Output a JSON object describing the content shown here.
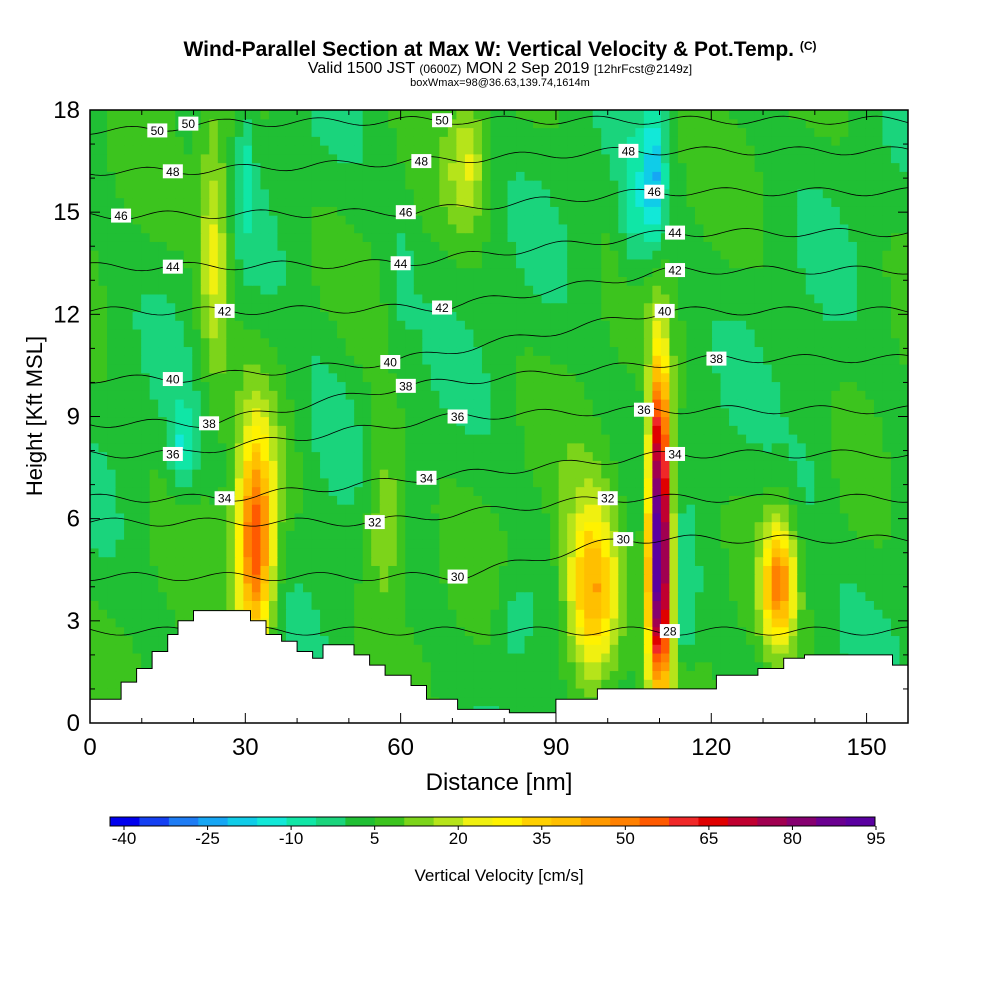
{
  "chart_data": {
    "type": "heatmap",
    "title": "Wind-Parallel Section at Max W: Vertical Velocity & Pot.Temp.",
    "title_unit": "(C)",
    "subtitle": {
      "prefix": "Valid 1500 JST",
      "utc": "(0600Z)",
      "date": "MON 2 Sep 2019",
      "forecast": "[12hrFcst@2149z]"
    },
    "box_info": "boxWmax=98@36.63,139.74,1614m",
    "xlabel": "Distance [nm]",
    "ylabel": "Height [Kft MSL]",
    "xlim": [
      0,
      158
    ],
    "ylim": [
      0,
      18
    ],
    "x_ticks": [
      "0",
      "30",
      "60",
      "90",
      "120",
      "150"
    ],
    "x_tick_values": [
      0,
      30,
      60,
      90,
      120,
      150
    ],
    "y_ticks": [
      "0",
      "3",
      "6",
      "9",
      "12",
      "15",
      "18"
    ],
    "y_tick_values": [
      0,
      3,
      6,
      9,
      12,
      15,
      18
    ],
    "colorbar": {
      "label": "Vertical Velocity [cm/s]",
      "tick_labels": [
        "-40",
        "-25",
        "-10",
        "5",
        "20",
        "35",
        "50",
        "65",
        "80",
        "95"
      ],
      "min": -40,
      "max": 95,
      "colors": [
        "#0000ee",
        "#1440f2",
        "#1e7cf4",
        "#16a6f4",
        "#10cce8",
        "#12e8d8",
        "#10e6a6",
        "#1ad47c",
        "#20bf34",
        "#3cc41e",
        "#7cd41a",
        "#b6e41a",
        "#f0f010",
        "#fff200",
        "#ffd000",
        "#ffbf00",
        "#ff9900",
        "#ff8000",
        "#ff5a00",
        "#f02828",
        "#e00000",
        "#c00030",
        "#a00050",
        "#860070",
        "#6a0090",
        "#5a00a0"
      ]
    },
    "terrain_kft": [
      [
        0,
        0.7
      ],
      [
        6,
        0.7
      ],
      [
        6,
        1.2
      ],
      [
        9,
        1.2
      ],
      [
        9,
        1.6
      ],
      [
        12,
        1.6
      ],
      [
        12,
        2.1
      ],
      [
        15,
        2.1
      ],
      [
        15,
        2.6
      ],
      [
        17,
        2.6
      ],
      [
        17,
        3
      ],
      [
        20,
        3
      ],
      [
        20,
        3.3
      ],
      [
        31,
        3.3
      ],
      [
        31,
        3
      ],
      [
        34,
        3
      ],
      [
        34,
        2.6
      ],
      [
        37,
        2.6
      ],
      [
        37,
        2.4
      ],
      [
        40,
        2.4
      ],
      [
        40,
        2.1
      ],
      [
        43,
        2.1
      ],
      [
        43,
        1.9
      ],
      [
        45,
        1.9
      ],
      [
        45,
        2.3
      ],
      [
        51,
        2.3
      ],
      [
        51,
        2
      ],
      [
        54,
        2
      ],
      [
        54,
        1.7
      ],
      [
        57,
        1.7
      ],
      [
        57,
        1.4
      ],
      [
        62,
        1.4
      ],
      [
        62,
        1.1
      ],
      [
        65,
        1.1
      ],
      [
        65,
        0.7
      ],
      [
        71,
        0.7
      ],
      [
        71,
        0.4
      ],
      [
        81,
        0.4
      ],
      [
        81,
        0.3
      ],
      [
        90,
        0.3
      ],
      [
        90,
        0.7
      ],
      [
        98,
        0.7
      ],
      [
        98,
        1
      ],
      [
        121,
        1
      ],
      [
        121,
        1.4
      ],
      [
        129,
        1.4
      ],
      [
        129,
        1.6
      ],
      [
        134,
        1.6
      ],
      [
        134,
        1.9
      ],
      [
        138,
        1.9
      ],
      [
        138,
        2
      ],
      [
        155,
        2
      ],
      [
        155,
        1.7
      ],
      [
        158,
        1.7
      ]
    ],
    "theta_contour_labels": [
      {
        "text": "50",
        "x": 13,
        "y": 17.4
      },
      {
        "text": "50",
        "x": 19,
        "y": 17.6
      },
      {
        "text": "50",
        "x": 68,
        "y": 17.7
      },
      {
        "text": "48",
        "x": 16,
        "y": 16.2
      },
      {
        "text": "48",
        "x": 64,
        "y": 16.5
      },
      {
        "text": "48",
        "x": 104,
        "y": 16.8
      },
      {
        "text": "46",
        "x": 6,
        "y": 14.9
      },
      {
        "text": "46",
        "x": 61,
        "y": 15.0
      },
      {
        "text": "46",
        "x": 109,
        "y": 15.6
      },
      {
        "text": "44",
        "x": 16,
        "y": 13.4
      },
      {
        "text": "44",
        "x": 60,
        "y": 13.5
      },
      {
        "text": "44",
        "x": 113,
        "y": 14.4
      },
      {
        "text": "42",
        "x": 26,
        "y": 12.1
      },
      {
        "text": "42",
        "x": 68,
        "y": 12.2
      },
      {
        "text": "42",
        "x": 113,
        "y": 13.3
      },
      {
        "text": "40",
        "x": 16,
        "y": 10.1
      },
      {
        "text": "40",
        "x": 58,
        "y": 10.6
      },
      {
        "text": "40",
        "x": 111,
        "y": 12.1
      },
      {
        "text": "38",
        "x": 23,
        "y": 8.8
      },
      {
        "text": "38",
        "x": 61,
        "y": 9.9
      },
      {
        "text": "38",
        "x": 121,
        "y": 10.7
      },
      {
        "text": "36",
        "x": 16,
        "y": 7.9
      },
      {
        "text": "36",
        "x": 71,
        "y": 9.0
      },
      {
        "text": "36",
        "x": 107,
        "y": 9.2
      },
      {
        "text": "34",
        "x": 26,
        "y": 6.6
      },
      {
        "text": "34",
        "x": 65,
        "y": 7.2
      },
      {
        "text": "34",
        "x": 113,
        "y": 7.9
      },
      {
        "text": "32",
        "x": 55,
        "y": 5.9
      },
      {
        "text": "32",
        "x": 100,
        "y": 6.6
      },
      {
        "text": "30",
        "x": 71,
        "y": 4.3
      },
      {
        "text": "30",
        "x": 103,
        "y": 5.4
      },
      {
        "text": "28",
        "x": 112,
        "y": 2.7
      }
    ],
    "w_features": [
      {
        "x": 32,
        "y": 5.3,
        "rx": 3.5,
        "ry": 3.2,
        "w": 55
      },
      {
        "x": 110,
        "y": 4.6,
        "rx": 2.2,
        "ry": 3.6,
        "w": 90
      },
      {
        "x": 110,
        "y": 8.5,
        "rx": 1.8,
        "ry": 3.0,
        "w": 40
      },
      {
        "x": 97,
        "y": 3.8,
        "rx": 5,
        "ry": 2.6,
        "w": 42
      },
      {
        "x": 133,
        "y": 4.1,
        "rx": 3,
        "ry": 1.8,
        "w": 42
      },
      {
        "x": 24,
        "y": 14.0,
        "rx": 3,
        "ry": 3.8,
        "w": 20
      },
      {
        "x": 73,
        "y": 16.5,
        "rx": 3.5,
        "ry": 1.8,
        "w": 16
      },
      {
        "x": 57,
        "y": 6.0,
        "rx": 4,
        "ry": 2.5,
        "w": 16
      },
      {
        "x": 109,
        "y": 16.0,
        "rx": 2,
        "ry": 2.0,
        "w": -22
      },
      {
        "x": 105,
        "y": 15.0,
        "rx": 3,
        "ry": 2.0,
        "w": -12
      },
      {
        "x": 18,
        "y": 8.0,
        "rx": 2.5,
        "ry": 1.3,
        "w": -14
      },
      {
        "x": 115,
        "y": 3.0,
        "rx": 2,
        "ry": 1.3,
        "w": -10
      },
      {
        "x": 30,
        "y": 16.2,
        "rx": 1.5,
        "ry": 1.8,
        "w": -10
      },
      {
        "x": 45,
        "y": 9.0,
        "rx": 6,
        "ry": 2.5,
        "w": -6
      },
      {
        "x": 82,
        "y": 3.0,
        "rx": 4,
        "ry": 1.6,
        "w": -8
      },
      {
        "x": 60,
        "y": 13.0,
        "rx": 3,
        "ry": 2.5,
        "w": -5
      },
      {
        "x": 140,
        "y": 8.0,
        "rx": 5,
        "ry": 3,
        "w": -5
      }
    ]
  }
}
